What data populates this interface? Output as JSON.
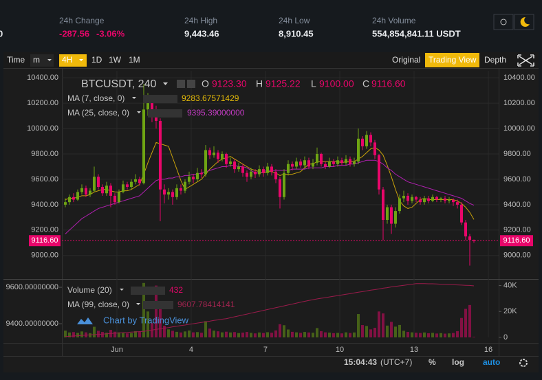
{
  "header": {
    "cut": "0",
    "items": [
      {
        "label": "24h Change",
        "values": [
          "-287.56",
          "-3.06%"
        ]
      },
      {
        "label": "24h High",
        "values": [
          "9,443.46"
        ]
      },
      {
        "label": "24h Low",
        "values": [
          "8,910.45"
        ]
      },
      {
        "label": "24h Volume",
        "values": [
          "554,854,841.11 USDT"
        ]
      }
    ]
  },
  "toolbar": {
    "left": [
      "Time",
      "m",
      "4H",
      "1D",
      "1W",
      "1M"
    ],
    "right": [
      "Original",
      "Trading View",
      "Depth"
    ]
  },
  "footer": {
    "time": "15:04:43",
    "zone": "(UTC+7)",
    "buttons": [
      "%",
      "log",
      "auto"
    ]
  },
  "watermark": "Chart by TradingView",
  "chart_data": {
    "type": "candlestick",
    "symbol": "BTCUSDT, 240",
    "ohlc_prefixes": [
      "O",
      "H",
      "L",
      "C"
    ],
    "ohlc_labels": [
      "9123.30",
      "9125.22",
      "9100.00",
      "9116.60"
    ],
    "last_price_label": "9116.60",
    "colors": {
      "up": "#6fa513",
      "down": "#e8066a"
    },
    "candles": [
      [
        9400,
        9450,
        9380,
        9420
      ],
      [
        9420,
        9480,
        9400,
        9460
      ],
      [
        9460,
        9490,
        9420,
        9440
      ],
      [
        9440,
        9520,
        9430,
        9500
      ],
      [
        9500,
        9560,
        9480,
        9530
      ],
      [
        9530,
        9550,
        9460,
        9480
      ],
      [
        9480,
        9530,
        9460,
        9510
      ],
      [
        9510,
        9700,
        9500,
        9620
      ],
      [
        9620,
        9640,
        9520,
        9540
      ],
      [
        9540,
        9560,
        9470,
        9490
      ],
      [
        9490,
        9580,
        9470,
        9550
      ],
      [
        9550,
        9570,
        9380,
        9470
      ],
      [
        9470,
        9490,
        9400,
        9420
      ],
      [
        9420,
        9520,
        9410,
        9500
      ],
      [
        9500,
        9590,
        9490,
        9560
      ],
      [
        9560,
        9580,
        9520,
        9540
      ],
      [
        9540,
        9600,
        9520,
        9580
      ],
      [
        9580,
        9640,
        9560,
        9600
      ],
      [
        9600,
        9620,
        9550,
        9570
      ],
      [
        9570,
        10350,
        9560,
        10150
      ],
      [
        10150,
        10280,
        10100,
        10200
      ],
      [
        10200,
        10230,
        10050,
        10120
      ],
      [
        10120,
        10180,
        10000,
        10060
      ],
      [
        10060,
        10080,
        9270,
        9520
      ],
      [
        9520,
        9560,
        9410,
        9480
      ],
      [
        9480,
        9530,
        9440,
        9500
      ],
      [
        9500,
        9520,
        9400,
        9460
      ],
      [
        9460,
        9560,
        9440,
        9530
      ],
      [
        9530,
        9560,
        9480,
        9510
      ],
      [
        9510,
        9600,
        9490,
        9580
      ],
      [
        9580,
        9660,
        9560,
        9620
      ],
      [
        9620,
        9640,
        9570,
        9600
      ],
      [
        9600,
        9690,
        9580,
        9650
      ],
      [
        9650,
        9680,
        9610,
        9640
      ],
      [
        9640,
        9870,
        9620,
        9830
      ],
      [
        9830,
        9850,
        9760,
        9790
      ],
      [
        9790,
        9860,
        9770,
        9810
      ],
      [
        9810,
        9830,
        9730,
        9760
      ],
      [
        9760,
        9820,
        9740,
        9800
      ],
      [
        9800,
        9810,
        9690,
        9720
      ],
      [
        9720,
        9770,
        9700,
        9740
      ],
      [
        9740,
        9760,
        9650,
        9680
      ],
      [
        9680,
        9730,
        9660,
        9700
      ],
      [
        9700,
        9720,
        9620,
        9650
      ],
      [
        9650,
        9670,
        9580,
        9620
      ],
      [
        9620,
        9690,
        9600,
        9660
      ],
      [
        9660,
        9680,
        9610,
        9640
      ],
      [
        9640,
        9710,
        9620,
        9680
      ],
      [
        9680,
        9700,
        9620,
        9650
      ],
      [
        9650,
        9730,
        9630,
        9700
      ],
      [
        9700,
        9720,
        9630,
        9660
      ],
      [
        9660,
        9680,
        9570,
        9600
      ],
      [
        9600,
        9620,
        9370,
        9460
      ],
      [
        9460,
        9680,
        9440,
        9650
      ],
      [
        9650,
        9750,
        9630,
        9720
      ],
      [
        9720,
        9740,
        9670,
        9700
      ],
      [
        9700,
        9770,
        9680,
        9740
      ],
      [
        9740,
        9760,
        9690,
        9710
      ],
      [
        9710,
        9780,
        9690,
        9750
      ],
      [
        9750,
        9770,
        9680,
        9700
      ],
      [
        9700,
        9760,
        9680,
        9730
      ],
      [
        9730,
        9850,
        9710,
        9800
      ],
      [
        9800,
        9810,
        9700,
        9720
      ],
      [
        9720,
        9740,
        9680,
        9700
      ],
      [
        9700,
        9770,
        9690,
        9740
      ],
      [
        9740,
        9760,
        9700,
        9720
      ],
      [
        9720,
        9780,
        9700,
        9750
      ],
      [
        9750,
        9770,
        9710,
        9730
      ],
      [
        9730,
        9790,
        9710,
        9760
      ],
      [
        9760,
        9780,
        9700,
        9720
      ],
      [
        9720,
        9770,
        9700,
        9740
      ],
      [
        9740,
        10000,
        9720,
        9920
      ],
      [
        9920,
        9940,
        9830,
        9860
      ],
      [
        9860,
        9980,
        9840,
        9950
      ],
      [
        9950,
        9970,
        9860,
        9890
      ],
      [
        9890,
        9910,
        9760,
        9790
      ],
      [
        9790,
        9800,
        9480,
        9520
      ],
      [
        9520,
        9540,
        9120,
        9280
      ],
      [
        9280,
        9400,
        9250,
        9380
      ],
      [
        9380,
        9400,
        9170,
        9250
      ],
      [
        9250,
        9380,
        9220,
        9350
      ],
      [
        9350,
        9480,
        9330,
        9450
      ],
      [
        9450,
        9510,
        9420,
        9470
      ],
      [
        9470,
        9490,
        9400,
        9430
      ],
      [
        9430,
        9480,
        9410,
        9460
      ],
      [
        9460,
        9470,
        9420,
        9440
      ],
      [
        9440,
        9460,
        9400,
        9420
      ],
      [
        9420,
        9470,
        9400,
        9450
      ],
      [
        9450,
        9470,
        9410,
        9430
      ],
      [
        9430,
        9480,
        9420,
        9460
      ],
      [
        9460,
        9470,
        9420,
        9440
      ],
      [
        9440,
        9460,
        9420,
        9450
      ],
      [
        9450,
        9470,
        9410,
        9430
      ],
      [
        9430,
        9460,
        9410,
        9440
      ],
      [
        9440,
        9450,
        9390,
        9420
      ],
      [
        9420,
        9440,
        9370,
        9400
      ],
      [
        9400,
        9420,
        9240,
        9260
      ],
      [
        9260,
        9280,
        9120,
        9150
      ],
      [
        9150,
        9170,
        8920,
        9123.3
      ],
      [
        9123.3,
        9125.22,
        9100,
        9116.6
      ]
    ],
    "series": [
      {
        "name": "MA (7, close, 0)",
        "color": "#c9a20a",
        "values": [
          9440,
          9450,
          9450,
          9460,
          9470,
          9470,
          9480,
          9500,
          9510,
          9520,
          9520,
          9510,
          9500,
          9500,
          9510,
          9510,
          9520,
          9540,
          9560,
          9640,
          9730,
          9810,
          9890,
          9880,
          9870,
          9860,
          9770,
          9680,
          9590,
          9520,
          9540,
          9560,
          9580,
          9600,
          9640,
          9680,
          9710,
          9740,
          9760,
          9770,
          9780,
          9760,
          9740,
          9720,
          9700,
          9680,
          9670,
          9660,
          9650,
          9660,
          9660,
          9650,
          9630,
          9640,
          9640,
          9640,
          9650,
          9660,
          9690,
          9720,
          9720,
          9740,
          9740,
          9740,
          9740,
          9740,
          9740,
          9730,
          9740,
          9740,
          9740,
          9760,
          9780,
          9810,
          9840,
          9850,
          9830,
          9790,
          9710,
          9620,
          9520,
          9430,
          9390,
          9370,
          9380,
          9410,
          9440,
          9450,
          9440,
          9440,
          9440,
          9440,
          9440,
          9440,
          9440,
          9430,
          9410,
          9380,
          9340,
          9283.67571429
        ]
      },
      {
        "name": "MA (25, close, 0)",
        "color": "#b01fb0",
        "value_label": "9395.39000000",
        "values": [
          9170,
          9200,
          9230,
          9260,
          9290,
          9310,
          9330,
          9350,
          9370,
          9380,
          9390,
          9400,
          9410,
          9420,
          9430,
          9440,
          9450,
          9460,
          9470,
          9500,
          9530,
          9560,
          9590,
          9600,
          9600,
          9610,
          9610,
          9620,
          9620,
          9630,
          9630,
          9640,
          9640,
          9650,
          9660,
          9670,
          9680,
          9690,
          9700,
          9700,
          9710,
          9710,
          9700,
          9700,
          9690,
          9670,
          9650,
          9650,
          9660,
          9670,
          9670,
          9670,
          9670,
          9670,
          9670,
          9680,
          9680,
          9680,
          9680,
          9690,
          9690,
          9690,
          9690,
          9700,
          9700,
          9700,
          9710,
          9710,
          9710,
          9720,
          9720,
          9730,
          9740,
          9750,
          9750,
          9750,
          9740,
          9720,
          9690,
          9670,
          9640,
          9620,
          9600,
          9580,
          9570,
          9560,
          9550,
          9540,
          9530,
          9520,
          9510,
          9500,
          9490,
          9480,
          9470,
          9460,
          9450,
          9430,
          9410,
          9395.39
        ]
      }
    ],
    "ylim": [
      8820,
      10455
    ],
    "yticks": [
      {
        "value": 9000,
        "label": "9000.00"
      },
      {
        "value": 9200,
        "label": "9200.00"
      },
      {
        "value": 9400,
        "label": "9400.00"
      },
      {
        "value": 9600,
        "label": "9600.00"
      },
      {
        "value": 9800,
        "label": "9800.00"
      },
      {
        "value": 10000,
        "label": "10000.00"
      },
      {
        "value": 10200,
        "label": "10200.00"
      },
      {
        "value": 10400,
        "label": "10400.00"
      }
    ],
    "xlim": [
      -0.83,
      105
    ],
    "xticks": [
      {
        "value": 12.5,
        "label": "Jun"
      },
      {
        "value": 30.5,
        "label": "4"
      },
      {
        "value": 48.5,
        "label": "7"
      },
      {
        "value": 66.5,
        "label": "10"
      },
      {
        "value": 84.5,
        "label": "13"
      },
      {
        "value": 102.5,
        "label": "16"
      }
    ],
    "grid": true,
    "volume_pane": {
      "title": "Volume (20)",
      "values": [
        5200,
        3800,
        4100,
        3500,
        4600,
        3900,
        3300,
        8200,
        5100,
        4200,
        3600,
        5800,
        4400,
        3900,
        3700,
        3100,
        3400,
        4800,
        4200,
        42000,
        20000,
        11000,
        40000,
        25000,
        9000,
        6200,
        5100,
        4300,
        3800,
        4600,
        5300,
        3900,
        4100,
        3600,
        12500,
        6800,
        5200,
        4700,
        3900,
        4400,
        3800,
        4100,
        3300,
        3700,
        4200,
        3500,
        3100,
        3800,
        3400,
        4000,
        3600,
        5400,
        10200,
        9400,
        6100,
        4300,
        3900,
        3500,
        4200,
        3800,
        3600,
        7200,
        4800,
        3900,
        3700,
        3300,
        3500,
        3100,
        3900,
        3400,
        3800,
        18000,
        9500,
        8800,
        6200,
        7400,
        20000,
        18500,
        9100,
        12000,
        8300,
        9600,
        5100,
        4200,
        3900,
        3600,
        3400,
        3800,
        3200,
        3500,
        3000,
        3300,
        2900,
        3100,
        3400,
        4800,
        15000,
        22000,
        25000,
        432
      ],
      "ylim": [
        0,
        44000
      ],
      "yticks": [
        0,
        {
          "value": 20000,
          "label": "20K"
        },
        {
          "value": 40000,
          "label": "40K"
        }
      ],
      "y2lim": [
        9325,
        9638
      ],
      "y2ticks": [
        {
          "value": 9400,
          "label": "9400.00000000"
        },
        {
          "value": 9600,
          "label": "9600.00000000"
        }
      ],
      "series": [
        {
          "name": "MA (99, close, 0)",
          "color": "#9b1b4b",
          "axis": "y2",
          "values": [
            9330,
            9331,
            9333,
            9334,
            9336,
            9337,
            9339,
            9340,
            9342,
            9343,
            9345,
            9346,
            9348,
            9349,
            9351,
            9352,
            9354,
            9355,
            9357,
            9358,
            9362,
            9365,
            9369,
            9372,
            9376,
            9379,
            9383,
            9386,
            9390,
            9393,
            9397,
            9400,
            9404,
            9407,
            9411,
            9414,
            9418,
            9421,
            9425,
            9428,
            9433,
            9438,
            9443,
            9448,
            9453,
            9458,
            9463,
            9468,
            9473,
            9478,
            9483,
            9488,
            9493,
            9498,
            9503,
            9508,
            9513,
            9518,
            9523,
            9528,
            9532,
            9536,
            9540,
            9543,
            9547,
            9551,
            9554,
            9558,
            9562,
            9565,
            9569,
            9573,
            9576,
            9580,
            9584,
            9587,
            9591,
            9595,
            9598,
            9602,
            9605,
            9608,
            9611,
            9614,
            9617,
            9620,
            9620,
            9620,
            9619,
            9619,
            9618,
            9617,
            9616,
            9615,
            9614,
            9613,
            9612,
            9611,
            9610,
            9607.78414141
          ]
        }
      ]
    }
  }
}
